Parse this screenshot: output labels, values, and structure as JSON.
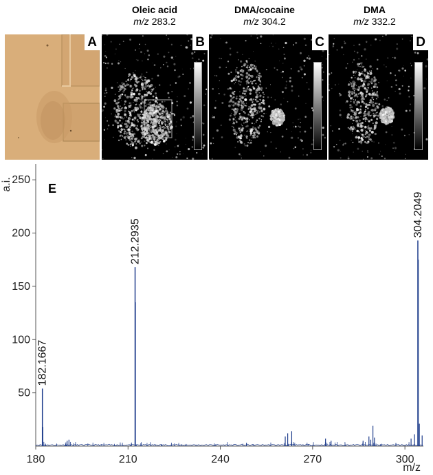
{
  "panels": [
    {
      "letter": "A"
    },
    {
      "letter": "B",
      "ion_name": "Oleic acid",
      "mz_prefix": "m/z",
      "mz_value": "283.2"
    },
    {
      "letter": "C",
      "ion_name": "DMA/cocaine",
      "mz_prefix": "m/z",
      "mz_value": "304.2"
    },
    {
      "letter": "D",
      "ion_name": "DMA",
      "mz_prefix": "m/z",
      "mz_value": "332.2"
    }
  ],
  "colors": {
    "spectrum_line": "#1f3d8c",
    "photo_bg": "#d8ad78"
  },
  "chart_data": {
    "type": "line",
    "panel_label": "E",
    "xlabel": "m/z",
    "ylabel": "a.i.",
    "xlim": [
      180,
      306
    ],
    "ylim": [
      0,
      265
    ],
    "x_ticks": [
      180,
      210,
      240,
      270,
      300
    ],
    "y_ticks": [
      50,
      100,
      150,
      200,
      250
    ],
    "grid": false,
    "labeled_peaks": [
      {
        "x": 182.1667,
        "y": 54,
        "label": "182.1667"
      },
      {
        "x": 212.2935,
        "y": 168,
        "label": "212.2935"
      },
      {
        "x": 304.2049,
        "y": 193,
        "label": "304.2049"
      }
    ],
    "minor_peaks": [
      {
        "x": 182.3,
        "y": 18
      },
      {
        "x": 190.2,
        "y": 5
      },
      {
        "x": 190.8,
        "y": 6
      },
      {
        "x": 212.4,
        "y": 135
      },
      {
        "x": 248.5,
        "y": 3
      },
      {
        "x": 261.1,
        "y": 9
      },
      {
        "x": 261.9,
        "y": 12
      },
      {
        "x": 263.2,
        "y": 14
      },
      {
        "x": 274.2,
        "y": 7
      },
      {
        "x": 276.0,
        "y": 5
      },
      {
        "x": 286.4,
        "y": 5
      },
      {
        "x": 288.3,
        "y": 9
      },
      {
        "x": 288.9,
        "y": 6
      },
      {
        "x": 289.6,
        "y": 19
      },
      {
        "x": 290.1,
        "y": 8
      },
      {
        "x": 302.0,
        "y": 7
      },
      {
        "x": 303.1,
        "y": 11
      },
      {
        "x": 304.35,
        "y": 175
      },
      {
        "x": 304.7,
        "y": 21
      },
      {
        "x": 305.6,
        "y": 10
      }
    ]
  }
}
